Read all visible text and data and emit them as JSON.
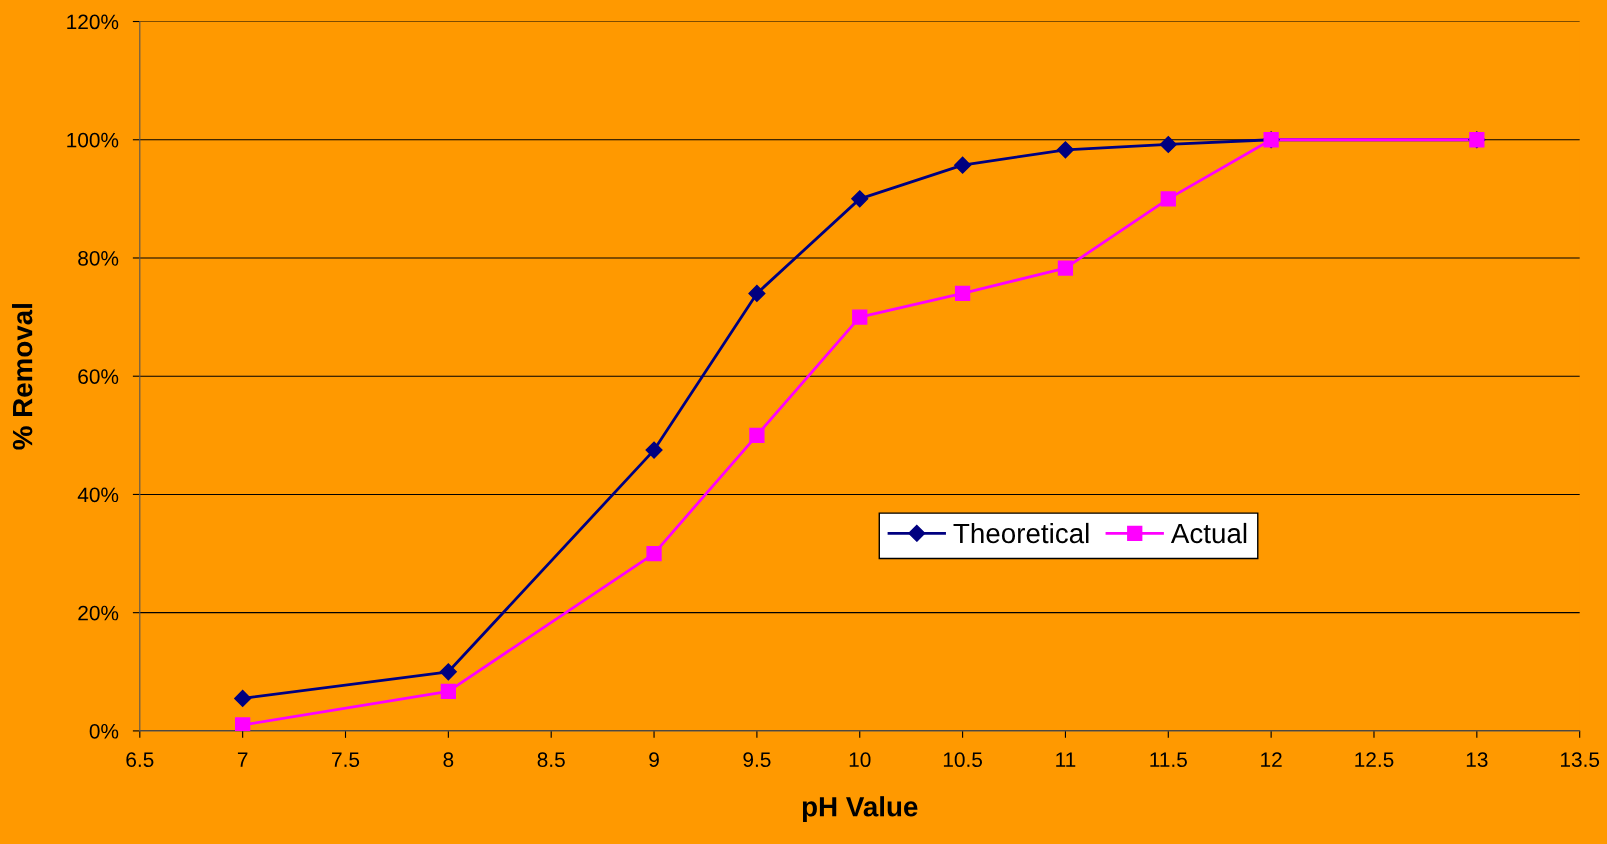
{
  "chart_data": {
    "type": "line",
    "xlabel": "pH Value",
    "ylabel": "% Removal",
    "x": [
      7,
      8,
      9,
      9.5,
      10,
      10.5,
      11,
      11.5,
      12,
      13
    ],
    "series": [
      {
        "name": "Theoretical",
        "color": "#000080",
        "marker": "diamond",
        "values": [
          5.5,
          10,
          47.5,
          74,
          90,
          95.7,
          98.3,
          99.2,
          100,
          100
        ]
      },
      {
        "name": "Actual",
        "color": "#ff00ff",
        "marker": "square",
        "values": [
          1,
          6.7,
          30,
          50,
          70,
          74,
          78.3,
          90,
          100,
          100
        ]
      }
    ],
    "xlim": [
      6.5,
      13.5
    ],
    "xticks": [
      6.5,
      7,
      7.5,
      8,
      8.5,
      9,
      9.5,
      10,
      10.5,
      11,
      11.5,
      12,
      12.5,
      13,
      13.5
    ],
    "ylim": [
      0,
      120
    ],
    "yticks": [
      {
        "value": 0,
        "label": "0%"
      },
      {
        "value": 20,
        "label": "20%"
      },
      {
        "value": 40,
        "label": "40%"
      },
      {
        "value": 60,
        "label": "60%"
      },
      {
        "value": 80,
        "label": "80%"
      },
      {
        "value": 100,
        "label": "100%"
      },
      {
        "value": 120,
        "label": "120%"
      }
    ],
    "grid": "y",
    "legend": "right",
    "line_style": "solid"
  }
}
